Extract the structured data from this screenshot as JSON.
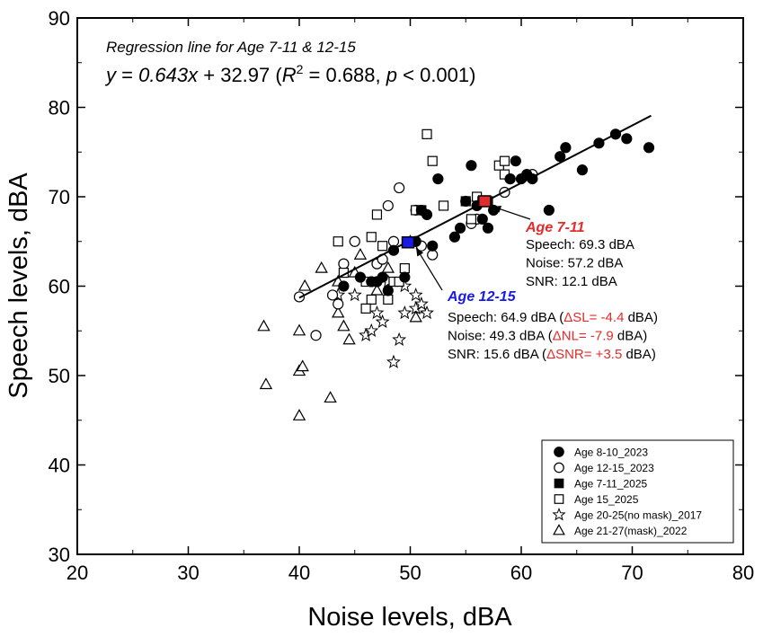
{
  "chart_data": {
    "type": "scatter",
    "xlabel": "Noise levels, dBA",
    "ylabel": "Speech levels, dBA",
    "xlim": [
      20,
      80
    ],
    "ylim": [
      30,
      90
    ],
    "xticks": [
      "20",
      "30",
      "40",
      "50",
      "60",
      "70",
      "80"
    ],
    "yticks": [
      "30",
      "40",
      "50",
      "60",
      "70",
      "80",
      "90"
    ],
    "grid": false,
    "legend_position": "bottom-right",
    "regression": {
      "label": "Regression line for Age 7-11 & 12-15",
      "eq_y": "y",
      "eq_mid1": " = ",
      "eq_slope": "0.643",
      "eq_x": "x",
      "eq_mid2": " + 32.97 (",
      "eq_R": "R",
      "eq_sup": "2",
      "eq_mid3": " = 0.688, ",
      "eq_p": "p",
      "eq_end": " < 0.001)",
      "x_range": [
        40,
        71.7
      ],
      "slope": 0.643,
      "intercept": 32.97
    },
    "series": [
      {
        "name": "Age 8-10_2023",
        "marker": "filled-circle",
        "points": [
          [
            44,
            60
          ],
          [
            45.5,
            61
          ],
          [
            46.5,
            60.5
          ],
          [
            47,
            60.5
          ],
          [
            47.5,
            61
          ],
          [
            48,
            59.5
          ],
          [
            48.5,
            64
          ],
          [
            49.5,
            61
          ],
          [
            50.5,
            65
          ],
          [
            51,
            68.5
          ],
          [
            51.5,
            68
          ],
          [
            52,
            64.5
          ],
          [
            52.5,
            72
          ],
          [
            54,
            65.5
          ],
          [
            54.5,
            66.5
          ],
          [
            55,
            69.5
          ],
          [
            55.5,
            73.5
          ],
          [
            56,
            69
          ],
          [
            56.5,
            67.5
          ],
          [
            57,
            66.5
          ],
          [
            57.5,
            68.5
          ],
          [
            59,
            72
          ],
          [
            59.5,
            74
          ],
          [
            60,
            72
          ],
          [
            60.5,
            72.5
          ],
          [
            61,
            72
          ],
          [
            62.5,
            68.5
          ],
          [
            63.5,
            74.5
          ],
          [
            64,
            75.5
          ],
          [
            65.5,
            73
          ],
          [
            67,
            76
          ],
          [
            68.5,
            77
          ],
          [
            69.5,
            76.5
          ],
          [
            71.5,
            75.5
          ]
        ]
      },
      {
        "name": "Age 12-15_2023",
        "marker": "open-circle",
        "points": [
          [
            40,
            58.8
          ],
          [
            41.5,
            54.5
          ],
          [
            43,
            59
          ],
          [
            43.5,
            58
          ],
          [
            44,
            62.5
          ],
          [
            45,
            65
          ],
          [
            47,
            62.5
          ],
          [
            47.5,
            63
          ],
          [
            48,
            69
          ],
          [
            48.5,
            65
          ],
          [
            49,
            71
          ],
          [
            50.5,
            68.5
          ],
          [
            51,
            64.5
          ],
          [
            52,
            63.5
          ],
          [
            55.5,
            67
          ],
          [
            56,
            67.5
          ],
          [
            58.5,
            70.5
          ],
          [
            59,
            72
          ],
          [
            61,
            72.5
          ]
        ]
      },
      {
        "name": "Age 7-11_2025",
        "marker": "filled-square",
        "points": [
          [
            56.5,
            69.5
          ],
          [
            57,
            69.5
          ]
        ]
      },
      {
        "name": "Age 15_2025",
        "marker": "open-square",
        "points": [
          [
            43.5,
            65
          ],
          [
            44,
            61.5
          ],
          [
            46,
            60.5
          ],
          [
            46.5,
            58.5
          ],
          [
            46,
            57.5
          ],
          [
            46.5,
            65.5
          ],
          [
            47,
            68
          ],
          [
            47.5,
            64.5
          ],
          [
            48,
            58.5
          ],
          [
            48.5,
            60.5
          ],
          [
            49,
            60.5
          ],
          [
            49.5,
            62
          ],
          [
            50.5,
            68.5
          ],
          [
            51,
            68.5
          ],
          [
            51.5,
            77
          ],
          [
            52,
            74
          ],
          [
            53,
            69
          ],
          [
            55,
            69.5
          ],
          [
            55.5,
            67.5
          ],
          [
            56,
            70
          ],
          [
            58,
            73.5
          ],
          [
            58.5,
            74
          ],
          [
            58.5,
            72.5
          ]
        ]
      },
      {
        "name": "Age 20-25(no mask)_2017",
        "marker": "open-star",
        "points": [
          [
            43.5,
            59
          ],
          [
            45,
            59
          ],
          [
            46,
            54.5
          ],
          [
            46.5,
            55
          ],
          [
            47,
            57
          ],
          [
            47.5,
            56
          ],
          [
            48,
            60.5
          ],
          [
            49,
            54
          ],
          [
            48.5,
            51.5
          ],
          [
            49.5,
            60
          ],
          [
            49.5,
            57
          ],
          [
            50.5,
            57.5
          ],
          [
            50.5,
            59
          ],
          [
            51,
            58
          ],
          [
            51.5,
            57
          ]
        ]
      },
      {
        "name": "Age 21-27(mask)_2022",
        "marker": "open-triangle",
        "points": [
          [
            36.8,
            55.5
          ],
          [
            37,
            49
          ],
          [
            40,
            55
          ],
          [
            40,
            50.5
          ],
          [
            40,
            45.5
          ],
          [
            40.3,
            51
          ],
          [
            40.5,
            60
          ],
          [
            42,
            62
          ],
          [
            42.8,
            47.5
          ],
          [
            43.5,
            60.5
          ],
          [
            43.5,
            57
          ],
          [
            44,
            55.5
          ],
          [
            44.5,
            54
          ],
          [
            45,
            61.5
          ],
          [
            45.5,
            63.5
          ],
          [
            47,
            59.5
          ],
          [
            48,
            62
          ],
          [
            50,
            65
          ],
          [
            50.5,
            56.5
          ],
          [
            51,
            57.5
          ]
        ]
      }
    ],
    "highlights": [
      {
        "title": "Age 7-11",
        "color": "#e32b2b",
        "x": 56.7,
        "y": 69.5,
        "lines": [
          {
            "text": "Speech: 69.3 dBA"
          },
          {
            "text": "Noise: 57.2 dBA"
          },
          {
            "text": "SNR: 12.1 dBA"
          }
        ]
      },
      {
        "title": "Age 12-15",
        "color": "#1a1ae6",
        "x": 49.8,
        "y": 64.9,
        "lines": [
          {
            "text": "Speech: 64.9 dBA (",
            "delta": "ΔSL= -4.4",
            "after": " dBA)"
          },
          {
            "text": "Noise: 49.3 dBA (",
            "delta": "ΔNL= -7.9",
            "after": " dBA)"
          },
          {
            "text": "SNR: 15.6 dBA (",
            "delta": "ΔSNR= +3.5",
            "after": " dBA)"
          }
        ]
      }
    ]
  }
}
